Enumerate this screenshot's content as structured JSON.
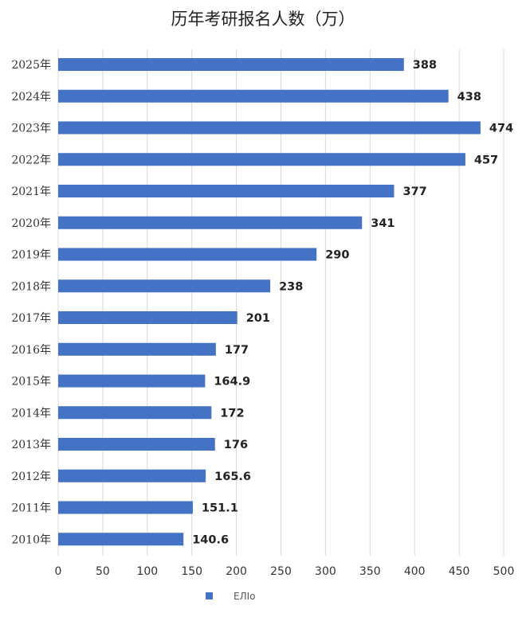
{
  "chart_data": {
    "type": "bar",
    "orientation": "horizontal",
    "title": "历年考研报名人数（万）",
    "categories": [
      "2025年",
      "2024年",
      "2023年",
      "2022年",
      "2021年",
      "2020年",
      "2019年",
      "2018年",
      "2017年",
      "2016年",
      "2015年",
      "2014年",
      "2013年",
      "2012年",
      "2011年",
      "2010年"
    ],
    "value_labels": [
      "388",
      "438",
      "474",
      "457",
      "377",
      "341",
      "290",
      "238",
      "201",
      "177",
      "164.9",
      "172",
      "176",
      "165.6",
      "151.1",
      "140.6"
    ],
    "series": [
      {
        "name": "ЕЛIo",
        "color": "#4472C4",
        "values": [
          388,
          438,
          474,
          457,
          377,
          341,
          290,
          238,
          201,
          177,
          164.9,
          172,
          176,
          165.6,
          151.1,
          140.6
        ]
      }
    ],
    "xlim": [
      0,
      500
    ],
    "xticks": [
      "0",
      "50",
      "100",
      "150",
      "200",
      "250",
      "300",
      "350",
      "400",
      "450",
      "500"
    ],
    "grid": true,
    "legend": "bottom-left",
    "xlabel": "",
    "ylabel": ""
  }
}
